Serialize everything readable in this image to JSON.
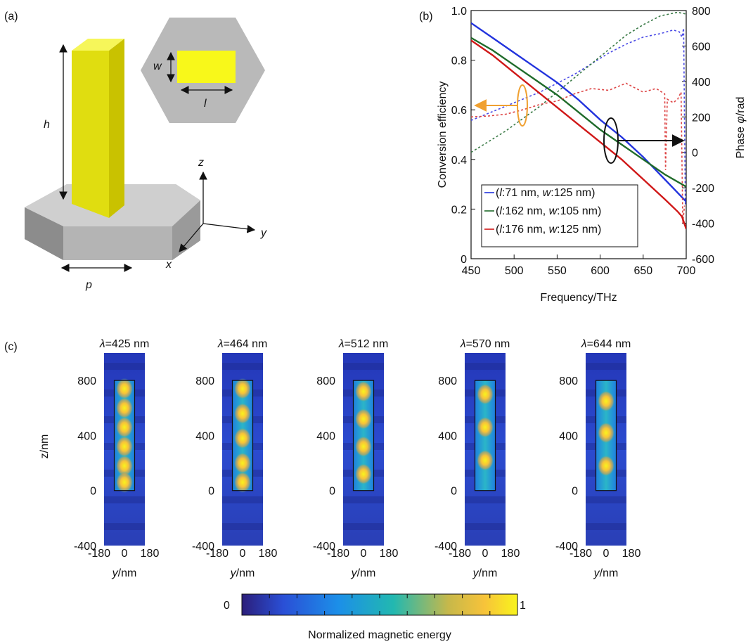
{
  "panels": {
    "a": {
      "label": "(a)",
      "dims": {
        "h": "h",
        "w": "w",
        "l": "l",
        "p": "p"
      },
      "axes": {
        "x": "x",
        "y": "y",
        "z": "z"
      }
    },
    "b": {
      "label": "(b)"
    },
    "c": {
      "label": "(c)"
    }
  },
  "chart_data": [
    {
      "type": "line",
      "xlabel": "Frequency/THz",
      "ylabel": "Conversion efficiency",
      "y2label_text": "Phase ",
      "y2label_sym": "φ",
      "y2label_unit": "/rad",
      "xlim": [
        450,
        700
      ],
      "ylim": [
        0,
        1.0
      ],
      "y2lim": [
        -600,
        800
      ],
      "xticks": [
        "450",
        "500",
        "550",
        "600",
        "650",
        "700"
      ],
      "xtick_vals": [
        450,
        500,
        550,
        600,
        650,
        700
      ],
      "yticks": [
        "0",
        "0.2",
        "0.4",
        "0.6",
        "0.8",
        "1.0"
      ],
      "ytick_vals": [
        0,
        0.2,
        0.4,
        0.6,
        0.8,
        1.0
      ],
      "y2ticks": [
        "-600",
        "-400",
        "-200",
        "0",
        "200",
        "400",
        "600",
        "800"
      ],
      "y2tick_vals": [
        -600,
        -400,
        -200,
        0,
        200,
        400,
        600,
        800
      ],
      "left_axis_color": "#c8102e",
      "right_axis_color": "#5a5ad6",
      "legend_position": "bottom-left",
      "series": [
        {
          "legend": [
            {
              "t": "(",
              "it": false
            },
            {
              "t": "l",
              "it": true
            },
            {
              "t": ":71 nm, ",
              "it": false
            },
            {
              "t": "w",
              "it": true
            },
            {
              "t": ":125 nm)",
              "it": false
            }
          ],
          "color": "#2233dd",
          "dashcolor": "#4a4ae6",
          "phase_x": [
            450,
            470,
            490,
            510,
            530,
            550,
            570,
            590,
            610,
            630,
            650,
            670,
            685,
            692,
            695,
            697,
            699
          ],
          "phase_y": [
            180,
            220,
            260,
            300,
            340,
            390,
            440,
            500,
            560,
            610,
            650,
            670,
            690,
            680,
            650,
            700,
            -300
          ],
          "eff_x": [
            450,
            475,
            500,
            525,
            550,
            575,
            600,
            625,
            650,
            675,
            700
          ],
          "eff_y": [
            0.95,
            0.89,
            0.83,
            0.77,
            0.71,
            0.64,
            0.56,
            0.49,
            0.41,
            0.32,
            0.23
          ]
        },
        {
          "legend": [
            {
              "t": "(",
              "it": false
            },
            {
              "t": "l",
              "it": true
            },
            {
              "t": ":162 nm, ",
              "it": false
            },
            {
              "t": "w",
              "it": true
            },
            {
              "t": ":105 nm)",
              "it": false
            }
          ],
          "color": "#1f6b2a",
          "dashcolor": "#3a7a46",
          "phase_x": [
            450,
            470,
            490,
            510,
            530,
            550,
            570,
            590,
            610,
            630,
            650,
            670,
            690,
            700
          ],
          "phase_y": [
            0,
            60,
            120,
            190,
            260,
            340,
            420,
            500,
            580,
            660,
            720,
            770,
            790,
            780
          ],
          "eff_x": [
            450,
            475,
            500,
            525,
            550,
            575,
            600,
            625,
            650,
            675,
            700
          ],
          "eff_y": [
            0.89,
            0.84,
            0.78,
            0.72,
            0.66,
            0.59,
            0.52,
            0.46,
            0.4,
            0.34,
            0.29
          ]
        },
        {
          "legend": [
            {
              "t": "(",
              "it": false
            },
            {
              "t": "l",
              "it": true
            },
            {
              "t": ":176 nm, ",
              "it": false
            },
            {
              "t": "w",
              "it": true
            },
            {
              "t": ":125 nm)",
              "it": false
            }
          ],
          "color": "#d01818",
          "dashcolor": "#dd4444",
          "phase_x": [
            450,
            470,
            490,
            510,
            530,
            550,
            570,
            590,
            610,
            630,
            650,
            665,
            675,
            676,
            678,
            685,
            690,
            694,
            696,
            698
          ],
          "phase_y": [
            200,
            205,
            215,
            240,
            270,
            290,
            330,
            360,
            350,
            390,
            340,
            360,
            330,
            -100,
            300,
            280,
            300,
            340,
            -400,
            -300
          ],
          "eff_x": [
            450,
            475,
            500,
            525,
            550,
            575,
            600,
            625,
            650,
            675,
            690,
            695,
            700
          ],
          "eff_y": [
            0.88,
            0.82,
            0.75,
            0.68,
            0.61,
            0.54,
            0.47,
            0.4,
            0.32,
            0.24,
            0.19,
            0.17,
            0.12
          ]
        }
      ]
    },
    {
      "type": "heatmap",
      "ylabel_text": "z/nm",
      "xlabel_sym": "y",
      "xlabel_unit": "/nm",
      "lambda_sym": "λ",
      "yticks": [
        "800",
        "400",
        "0",
        "-400"
      ],
      "ytick_vals": [
        800,
        400,
        0,
        -400
      ],
      "xticks": [
        "-180",
        "0",
        "180"
      ],
      "xtick_vals": [
        -180,
        0,
        180
      ],
      "ylim": [
        -400,
        1000
      ],
      "pillar_y": [
        0,
        800
      ],
      "pillar_halfwidth_nm": 90,
      "maps": [
        {
          "title": "=425 nm",
          "hotspots_nm": [
            740,
            600,
            460,
            320,
            180,
            60
          ]
        },
        {
          "title": "=464 nm",
          "hotspots_nm": [
            740,
            560,
            380,
            200,
            60
          ]
        },
        {
          "title": "=512 nm",
          "hotspots_nm": [
            720,
            520,
            320,
            120
          ]
        },
        {
          "title": "=570 nm",
          "hotspots_nm": [
            700,
            460,
            220
          ]
        },
        {
          "title": "=644 nm",
          "hotspots_nm": [
            650,
            420,
            180
          ]
        }
      ],
      "colorbar": {
        "min_label": "0",
        "max_label": "1",
        "label": "Normalized magnetic energy"
      }
    }
  ]
}
